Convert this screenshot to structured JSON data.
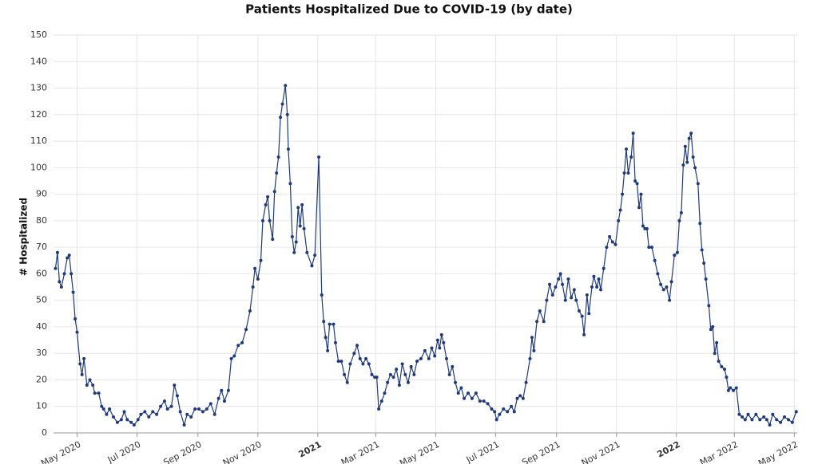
{
  "chart_data": {
    "type": "line",
    "title": "Patients Hospitalized Due to COVID-19 (by date)",
    "ylabel": "# Hospitalized",
    "color": "#1f3a7a",
    "x": [
      "2020-04-09",
      "2020-04-11",
      "2020-04-13",
      "2020-04-15",
      "2020-04-18",
      "2020-04-21",
      "2020-04-23",
      "2020-04-25",
      "2020-04-27",
      "2020-04-29",
      "2020-05-01",
      "2020-05-04",
      "2020-05-06",
      "2020-05-08",
      "2020-05-11",
      "2020-05-14",
      "2020-05-17",
      "2020-05-19",
      "2020-05-23",
      "2020-05-26",
      "2020-05-28",
      "2020-05-31",
      "2020-06-03",
      "2020-06-07",
      "2020-06-11",
      "2020-06-15",
      "2020-06-18",
      "2020-06-21",
      "2020-06-25",
      "2020-06-28",
      "2020-07-02",
      "2020-07-05",
      "2020-07-09",
      "2020-07-13",
      "2020-07-17",
      "2020-07-21",
      "2020-07-25",
      "2020-07-29",
      "2020-08-01",
      "2020-08-05",
      "2020-08-08",
      "2020-08-11",
      "2020-08-14",
      "2020-08-18",
      "2020-08-21",
      "2020-08-25",
      "2020-08-29",
      "2020-09-02",
      "2020-09-06",
      "2020-09-10",
      "2020-09-14",
      "2020-09-18",
      "2020-09-22",
      "2020-09-25",
      "2020-09-28",
      "2020-10-02",
      "2020-10-05",
      "2020-10-08",
      "2020-10-12",
      "2020-10-16",
      "2020-10-20",
      "2020-10-24",
      "2020-10-27",
      "2020-10-29",
      "2020-11-01",
      "2020-11-04",
      "2020-11-06",
      "2020-11-09",
      "2020-11-11",
      "2020-11-13",
      "2020-11-16",
      "2020-11-18",
      "2020-11-20",
      "2020-11-22",
      "2020-11-24",
      "2020-11-26",
      "2020-11-29",
      "2020-12-01",
      "2020-12-02",
      "2020-12-04",
      "2020-12-06",
      "2020-12-08",
      "2020-12-10",
      "2020-12-12",
      "2020-12-14",
      "2020-12-16",
      "2020-12-18",
      "2020-12-21",
      "2020-12-26",
      "2020-12-29",
      "2021-01-02",
      "2021-01-05",
      "2021-01-07",
      "2021-01-09",
      "2021-01-11",
      "2021-01-13",
      "2021-01-17",
      "2021-01-19",
      "2021-01-22",
      "2021-01-25",
      "2021-01-28",
      "2021-01-31",
      "2021-02-03",
      "2021-02-07",
      "2021-02-10",
      "2021-02-13",
      "2021-02-16",
      "2021-02-19",
      "2021-02-22",
      "2021-02-25",
      "2021-02-28",
      "2021-03-02",
      "2021-03-04",
      "2021-03-07",
      "2021-03-10",
      "2021-03-13",
      "2021-03-16",
      "2021-03-19",
      "2021-03-22",
      "2021-03-25",
      "2021-03-28",
      "2021-03-31",
      "2021-04-03",
      "2021-04-06",
      "2021-04-09",
      "2021-04-12",
      "2021-04-16",
      "2021-04-20",
      "2021-04-24",
      "2021-04-27",
      "2021-04-30",
      "2021-05-03",
      "2021-05-05",
      "2021-05-07",
      "2021-05-09",
      "2021-05-12",
      "2021-05-15",
      "2021-05-18",
      "2021-05-21",
      "2021-05-24",
      "2021-05-27",
      "2021-05-30",
      "2021-06-03",
      "2021-06-07",
      "2021-06-11",
      "2021-06-15",
      "2021-06-19",
      "2021-06-23",
      "2021-06-27",
      "2021-06-30",
      "2021-07-02",
      "2021-07-05",
      "2021-07-09",
      "2021-07-13",
      "2021-07-17",
      "2021-07-20",
      "2021-07-23",
      "2021-07-26",
      "2021-07-29",
      "2021-08-01",
      "2021-08-05",
      "2021-08-07",
      "2021-08-09",
      "2021-08-12",
      "2021-08-15",
      "2021-08-19",
      "2021-08-22",
      "2021-08-25",
      "2021-08-28",
      "2021-08-31",
      "2021-09-03",
      "2021-09-05",
      "2021-09-07",
      "2021-09-10",
      "2021-09-13",
      "2021-09-16",
      "2021-09-19",
      "2021-09-21",
      "2021-09-24",
      "2021-09-27",
      "2021-09-29",
      "2021-10-02",
      "2021-10-04",
      "2021-10-07",
      "2021-10-09",
      "2021-10-12",
      "2021-10-14",
      "2021-10-16",
      "2021-10-19",
      "2021-10-22",
      "2021-10-25",
      "2021-10-28",
      "2021-10-31",
      "2021-11-03",
      "2021-11-05",
      "2021-11-07",
      "2021-11-09",
      "2021-11-11",
      "2021-11-13",
      "2021-11-16",
      "2021-11-18",
      "2021-11-20",
      "2021-11-22",
      "2021-11-24",
      "2021-11-26",
      "2021-11-28",
      "2021-11-30",
      "2021-12-02",
      "2021-12-04",
      "2021-12-07",
      "2021-12-10",
      "2021-12-13",
      "2021-12-16",
      "2021-12-19",
      "2021-12-22",
      "2021-12-25",
      "2021-12-27",
      "2021-12-30",
      "2022-01-02",
      "2022-01-04",
      "2022-01-06",
      "2022-01-08",
      "2022-01-10",
      "2022-01-12",
      "2022-01-14",
      "2022-01-16",
      "2022-01-18",
      "2022-01-20",
      "2022-01-23",
      "2022-01-25",
      "2022-01-27",
      "2022-01-29",
      "2022-01-31",
      "2022-02-03",
      "2022-02-05",
      "2022-02-07",
      "2022-02-09",
      "2022-02-11",
      "2022-02-13",
      "2022-02-16",
      "2022-02-19",
      "2022-02-21",
      "2022-02-23",
      "2022-02-25",
      "2022-02-28",
      "2022-03-03",
      "2022-03-06",
      "2022-03-09",
      "2022-03-12",
      "2022-03-15",
      "2022-03-19",
      "2022-03-23",
      "2022-03-27",
      "2022-03-31",
      "2022-04-03",
      "2022-04-06",
      "2022-04-09",
      "2022-04-13",
      "2022-04-17",
      "2022-04-21",
      "2022-04-25",
      "2022-04-29",
      "2022-05-03"
    ],
    "values": [
      62,
      68,
      57,
      55,
      60,
      66,
      67,
      60,
      53,
      43,
      38,
      26,
      22,
      28,
      18,
      20,
      18,
      15,
      15,
      10,
      9,
      7,
      9,
      6,
      4,
      5,
      8,
      5,
      4,
      3,
      5,
      7,
      8,
      6,
      8,
      7,
      10,
      12,
      9,
      10,
      18,
      14,
      8,
      3,
      7,
      6,
      9,
      9,
      8,
      9,
      11,
      7,
      13,
      16,
      12,
      16,
      28,
      29,
      33,
      34,
      39,
      46,
      55,
      62,
      58,
      65,
      80,
      86,
      89,
      80,
      73,
      91,
      98,
      104,
      119,
      124,
      131,
      120,
      107,
      94,
      74,
      68,
      72,
      85,
      78,
      86,
      77,
      68,
      63,
      67,
      104,
      52,
      42,
      36,
      31,
      41,
      41,
      34,
      27,
      27,
      22,
      19,
      26,
      30,
      33,
      28,
      26,
      28,
      26,
      22,
      21,
      21,
      9,
      12,
      15,
      19,
      22,
      21,
      24,
      18,
      26,
      22,
      19,
      25,
      22,
      27,
      28,
      31,
      28,
      32,
      29,
      35,
      32,
      37,
      34,
      28,
      22,
      25,
      19,
      15,
      17,
      13,
      15,
      13,
      15,
      12,
      12,
      11,
      9,
      8,
      5,
      7,
      9,
      8,
      10,
      8,
      13,
      14,
      13,
      19,
      28,
      36,
      31,
      42,
      46,
      42,
      50,
      56,
      52,
      55,
      58,
      60,
      56,
      50,
      58,
      51,
      54,
      50,
      46,
      44,
      37,
      52,
      45,
      55,
      59,
      55,
      58,
      54,
      62,
      70,
      74,
      72,
      71,
      80,
      84,
      90,
      98,
      107,
      98,
      104,
      113,
      95,
      94,
      85,
      90,
      78,
      77,
      77,
      70,
      70,
      65,
      60,
      56,
      54,
      55,
      50,
      57,
      67,
      68,
      80,
      83,
      101,
      108,
      102,
      111,
      113,
      104,
      100,
      94,
      79,
      69,
      64,
      58,
      48,
      39,
      40,
      30,
      34,
      27,
      25,
      24,
      21,
      16,
      17,
      16,
      17,
      7,
      6,
      5,
      7,
      5,
      7,
      5,
      6,
      5,
      3,
      7,
      5,
      4,
      6,
      5,
      4,
      8
    ],
    "xlim": [
      "2020-04-07",
      "2022-05-04"
    ],
    "xticks": [
      {
        "value": "2020-05-01",
        "label": "May 2020"
      },
      {
        "value": "2020-07-01",
        "label": "Jul 2020"
      },
      {
        "value": "2020-09-01",
        "label": "Sep 2020"
      },
      {
        "value": "2020-11-01",
        "label": "Nov 2020"
      },
      {
        "value": "2021-01-01",
        "label": "2021"
      },
      {
        "value": "2021-03-01",
        "label": "Mar 2021"
      },
      {
        "value": "2021-05-01",
        "label": "May 2021"
      },
      {
        "value": "2021-07-01",
        "label": "Jul 2021"
      },
      {
        "value": "2021-09-01",
        "label": "Sep 2021"
      },
      {
        "value": "2021-11-01",
        "label": "Nov 2021"
      },
      {
        "value": "2022-01-01",
        "label": "2022"
      },
      {
        "value": "2022-03-01",
        "label": "Mar 2022"
      },
      {
        "value": "2022-05-01",
        "label": "May 2022"
      }
    ],
    "ylim": [
      0,
      150
    ],
    "yticks": [
      0,
      10,
      20,
      30,
      40,
      50,
      60,
      70,
      80,
      90,
      100,
      110,
      120,
      130,
      140,
      150
    ],
    "grid": true
  }
}
